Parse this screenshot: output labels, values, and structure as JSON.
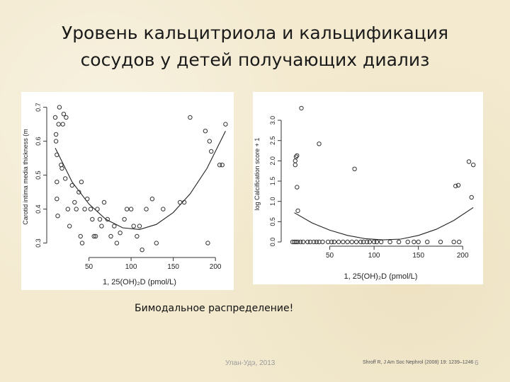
{
  "slide": {
    "title_line1": "Уровень кальцитриола и кальцификация",
    "title_line2": "сосудов у детей получающих диализ",
    "caption": "Бимодальное распределение!",
    "footer_left": "Улан-Удэ, 2013",
    "footer_ref": "Shroff R, J Am Soc Nephrol (2008) 19: 1239–1246",
    "page_number": "6"
  },
  "chart_data": [
    {
      "type": "scatter",
      "title": "",
      "xlabel": "1, 25(OH)₂D (pmol/L)",
      "ylabel": "Carotid intima media thickness (m",
      "xlim": [
        5,
        215
      ],
      "ylim": [
        0.27,
        0.72
      ],
      "xticks": [
        50,
        100,
        150,
        200
      ],
      "yticks": [
        0.3,
        0.4,
        0.5,
        0.6,
        0.7
      ],
      "grid": false,
      "point_color": "#333333",
      "points": [
        {
          "x": 10,
          "y": 0.67
        },
        {
          "x": 11,
          "y": 0.62
        },
        {
          "x": 11,
          "y": 0.6
        },
        {
          "x": 12,
          "y": 0.56
        },
        {
          "x": 12,
          "y": 0.48
        },
        {
          "x": 12,
          "y": 0.43
        },
        {
          "x": 13,
          "y": 0.38
        },
        {
          "x": 14,
          "y": 0.65
        },
        {
          "x": 15,
          "y": 0.7
        },
        {
          "x": 17,
          "y": 0.53
        },
        {
          "x": 18,
          "y": 0.52
        },
        {
          "x": 19,
          "y": 0.65
        },
        {
          "x": 20,
          "y": 0.68
        },
        {
          "x": 22,
          "y": 0.49
        },
        {
          "x": 23,
          "y": 0.67
        },
        {
          "x": 25,
          "y": 0.4
        },
        {
          "x": 27,
          "y": 0.35
        },
        {
          "x": 30,
          "y": 0.47
        },
        {
          "x": 33,
          "y": 0.42
        },
        {
          "x": 35,
          "y": 0.4
        },
        {
          "x": 38,
          "y": 0.45
        },
        {
          "x": 40,
          "y": 0.32
        },
        {
          "x": 41,
          "y": 0.48
        },
        {
          "x": 42,
          "y": 0.3
        },
        {
          "x": 45,
          "y": 0.4
        },
        {
          "x": 48,
          "y": 0.43
        },
        {
          "x": 52,
          "y": 0.4
        },
        {
          "x": 54,
          "y": 0.37
        },
        {
          "x": 56,
          "y": 0.32
        },
        {
          "x": 58,
          "y": 0.32
        },
        {
          "x": 60,
          "y": 0.4
        },
        {
          "x": 63,
          "y": 0.37
        },
        {
          "x": 65,
          "y": 0.35
        },
        {
          "x": 68,
          "y": 0.42
        },
        {
          "x": 72,
          "y": 0.37
        },
        {
          "x": 76,
          "y": 0.32
        },
        {
          "x": 80,
          "y": 0.35
        },
        {
          "x": 83,
          "y": 0.3
        },
        {
          "x": 87,
          "y": 0.33
        },
        {
          "x": 92,
          "y": 0.37
        },
        {
          "x": 95,
          "y": 0.4
        },
        {
          "x": 100,
          "y": 0.4
        },
        {
          "x": 103,
          "y": 0.35
        },
        {
          "x": 107,
          "y": 0.32
        },
        {
          "x": 110,
          "y": 0.35
        },
        {
          "x": 113,
          "y": 0.28
        },
        {
          "x": 118,
          "y": 0.4
        },
        {
          "x": 125,
          "y": 0.43
        },
        {
          "x": 130,
          "y": 0.3
        },
        {
          "x": 138,
          "y": 0.4
        },
        {
          "x": 158,
          "y": 0.42
        },
        {
          "x": 163,
          "y": 0.42
        },
        {
          "x": 170,
          "y": 0.67
        },
        {
          "x": 188,
          "y": 0.63
        },
        {
          "x": 191,
          "y": 0.3
        },
        {
          "x": 193,
          "y": 0.6
        },
        {
          "x": 195,
          "y": 0.57
        },
        {
          "x": 205,
          "y": 0.53
        },
        {
          "x": 208,
          "y": 0.53
        },
        {
          "x": 212,
          "y": 0.65
        }
      ],
      "fit_curve": {
        "x": [
          10,
          30,
          50,
          70,
          90,
          110,
          130,
          150,
          170,
          190,
          212
        ],
        "y": [
          0.58,
          0.48,
          0.415,
          0.37,
          0.345,
          0.34,
          0.355,
          0.39,
          0.445,
          0.52,
          0.63
        ]
      }
    },
    {
      "type": "scatter",
      "title": "",
      "xlabel": "1, 25(OH)₂D (pmol/L)",
      "ylabel": "log Calcification score + 1",
      "xlim": [
        0,
        215
      ],
      "ylim": [
        0,
        3.35
      ],
      "xticks": [
        50,
        100,
        150,
        200
      ],
      "yticks": [
        0.0,
        0.5,
        1.0,
        1.5,
        2.0,
        2.5,
        3.0
      ],
      "grid": false,
      "point_color": "#333333",
      "points": [
        {
          "x": 11,
          "y": 2.0
        },
        {
          "x": 11,
          "y": 1.9
        },
        {
          "x": 12,
          "y": 2.1
        },
        {
          "x": 13,
          "y": 2.13
        },
        {
          "x": 13,
          "y": 1.35
        },
        {
          "x": 14,
          "y": 0.77
        },
        {
          "x": 18,
          "y": 3.3
        },
        {
          "x": 38,
          "y": 2.42
        },
        {
          "x": 78,
          "y": 1.8
        },
        {
          "x": 192,
          "y": 1.38
        },
        {
          "x": 195,
          "y": 1.4
        },
        {
          "x": 207,
          "y": 1.98
        },
        {
          "x": 212,
          "y": 1.9
        },
        {
          "x": 210,
          "y": 1.1
        },
        {
          "x": 8,
          "y": 0
        },
        {
          "x": 10,
          "y": 0
        },
        {
          "x": 12,
          "y": 0
        },
        {
          "x": 14,
          "y": 0
        },
        {
          "x": 17,
          "y": 0
        },
        {
          "x": 20,
          "y": 0
        },
        {
          "x": 25,
          "y": 0
        },
        {
          "x": 28,
          "y": 0
        },
        {
          "x": 32,
          "y": 0
        },
        {
          "x": 35,
          "y": 0
        },
        {
          "x": 38,
          "y": 0
        },
        {
          "x": 42,
          "y": 0
        },
        {
          "x": 48,
          "y": 0
        },
        {
          "x": 52,
          "y": 0
        },
        {
          "x": 55,
          "y": 0
        },
        {
          "x": 60,
          "y": 0
        },
        {
          "x": 65,
          "y": 0
        },
        {
          "x": 70,
          "y": 0
        },
        {
          "x": 75,
          "y": 0
        },
        {
          "x": 80,
          "y": 0
        },
        {
          "x": 85,
          "y": 0
        },
        {
          "x": 88,
          "y": 0
        },
        {
          "x": 92,
          "y": 0
        },
        {
          "x": 95,
          "y": 0
        },
        {
          "x": 100,
          "y": 0
        },
        {
          "x": 103,
          "y": 0
        },
        {
          "x": 108,
          "y": 0
        },
        {
          "x": 118,
          "y": 0
        },
        {
          "x": 128,
          "y": 0
        },
        {
          "x": 138,
          "y": 0
        },
        {
          "x": 145,
          "y": 0
        },
        {
          "x": 150,
          "y": 0
        },
        {
          "x": 160,
          "y": 0
        },
        {
          "x": 175,
          "y": 0
        },
        {
          "x": 190,
          "y": 0
        },
        {
          "x": 196,
          "y": 0
        }
      ],
      "fit_curve": {
        "x": [
          10,
          30,
          50,
          70,
          90,
          110,
          130,
          150,
          170,
          190,
          212
        ],
        "y": [
          0.72,
          0.47,
          0.29,
          0.16,
          0.08,
          0.05,
          0.07,
          0.16,
          0.31,
          0.53,
          0.85
        ]
      }
    }
  ]
}
